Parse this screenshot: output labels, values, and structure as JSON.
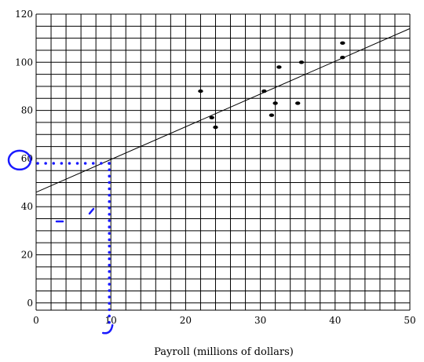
{
  "chart_data": {
    "type": "scatter",
    "title": "",
    "xlabel": "Payroll (millions of dollars)",
    "ylabel": "",
    "xlim": [
      0,
      50
    ],
    "ylim": [
      -3,
      120
    ],
    "grid": true,
    "x_ticks": [
      0,
      10,
      20,
      30,
      40,
      50
    ],
    "y_ticks": [
      0,
      20,
      40,
      60,
      80,
      100,
      120
    ],
    "series": [
      {
        "points": [
          {
            "x": 22,
            "y": 88
          },
          {
            "x": 23.5,
            "y": 77
          },
          {
            "x": 24,
            "y": 73
          },
          {
            "x": 30.5,
            "y": 88
          },
          {
            "x": 31.5,
            "y": 78
          },
          {
            "x": 32,
            "y": 83
          },
          {
            "x": 32.5,
            "y": 98
          },
          {
            "x": 35,
            "y": 83
          },
          {
            "x": 35.5,
            "y": 100
          },
          {
            "x": 41,
            "y": 102
          },
          {
            "x": 41,
            "y": 108
          }
        ]
      }
    ],
    "trend_line": {
      "x0": 0,
      "y0": 46,
      "x1": 50,
      "y1": 114
    },
    "annotations": {
      "color": "#1a1aff",
      "circled_y_value": 60,
      "highlighted_x": 10,
      "highlighted_y": 58
    }
  }
}
